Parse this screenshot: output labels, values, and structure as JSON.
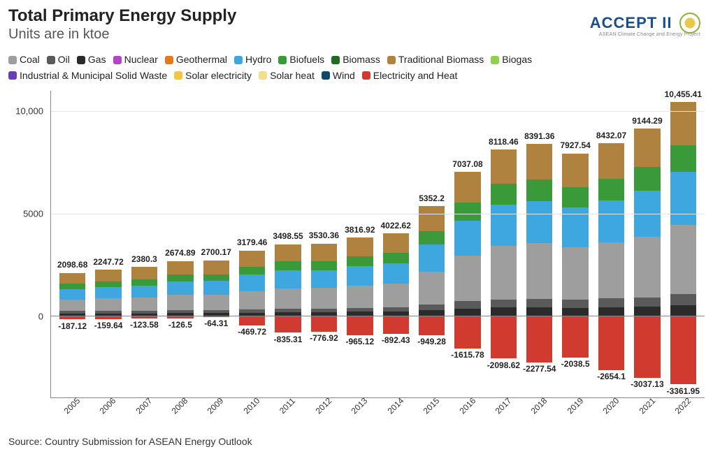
{
  "title": "Total Primary Energy Supply",
  "subtitle": "Units are in ktoe",
  "source": "Source: Country Submission for ASEAN Energy Outlook",
  "logo": {
    "main": "ACCEPT II",
    "sub": "ASEAN Climate Change and Energy Project"
  },
  "legend_order": [
    "Coal",
    "Oil",
    "Gas",
    "Nuclear",
    "Geothermal",
    "Hydro",
    "Biofuels",
    "Biomass",
    "Traditional Biomass",
    "Biogas",
    "Industrial & Municipal Solid Waste",
    "Solar electricity",
    "Solar heat",
    "Wind",
    "Electricity and Heat"
  ],
  "colors": {
    "Coal": "#9e9e9e",
    "Oil": "#5a5a5a",
    "Gas": "#2b2b2b",
    "Nuclear": "#b542c7",
    "Geothermal": "#e07b1f",
    "Hydro": "#3fa7e0",
    "Biofuels": "#3a9a3a",
    "Biomass": "#1f6b1f",
    "Traditional Biomass": "#b0823f",
    "Biogas": "#8fd14f",
    "Industrial & Municipal Solid Waste": "#6a3fb5",
    "Solar electricity": "#f2c744",
    "Solar heat": "#f0e08a",
    "Wind": "#0e4a66",
    "Electricity and Heat": "#d13a2f"
  },
  "chart": {
    "ymin": -4000,
    "ymax": 11000,
    "yticks": [
      0,
      5000,
      10000
    ],
    "ytick_labels": [
      "0",
      "5000",
      "10,000"
    ],
    "categories": [
      "2005",
      "2006",
      "2007",
      "2008",
      "2009",
      "2010",
      "2011",
      "2012",
      "2013",
      "2014",
      "2015",
      "2016",
      "2017",
      "2018",
      "2019",
      "2020",
      "2021",
      "2022"
    ],
    "top_labels": [
      "2098.68",
      "2247.72",
      "2380.3",
      "2674.89",
      "2700.17",
      "3179.46",
      "3498.55",
      "3530.36",
      "3816.92",
      "4022.62",
      "5352.2",
      "7037.08",
      "8118.46",
      "8391.36",
      "7927.54",
      "8432.07",
      "9144.29",
      "10,455.41"
    ],
    "bot_labels": [
      "-187.12",
      "-159.64",
      "-123.58",
      "-126.5",
      "-64.31",
      "-469.72",
      "-835.31",
      "-776.92",
      "-965.12",
      "-892.43",
      "-949.28",
      "-1615.78",
      "-2098.62",
      "-2277.54",
      "-2038.5",
      "-2654.1",
      "-3037.13",
      "-3361.95"
    ],
    "pos_totals": [
      2098.68,
      2247.72,
      2380.3,
      2674.89,
      2700.17,
      3179.46,
      3498.55,
      3530.36,
      3816.92,
      4022.62,
      5352.2,
      7037.08,
      8118.46,
      8391.36,
      7927.54,
      8432.07,
      9144.29,
      10455.41
    ],
    "neg_totals": [
      -187.12,
      -159.64,
      -123.58,
      -126.5,
      -64.31,
      -469.72,
      -835.31,
      -776.92,
      -965.12,
      -892.43,
      -949.28,
      -1615.78,
      -2098.62,
      -2277.54,
      -2038.5,
      -2654.1,
      -3037.13,
      -3361.95
    ],
    "pos_stack_order": [
      "Gas",
      "Oil",
      "Coal",
      "Hydro",
      "Biofuels",
      "Traditional Biomass"
    ],
    "neg_stack_order": [
      "Electricity and Heat"
    ],
    "series": {
      "Gas": [
        100,
        110,
        115,
        130,
        130,
        150,
        170,
        175,
        190,
        200,
        270,
        350,
        400,
        410,
        390,
        420,
        450,
        520
      ],
      "Oil": [
        120,
        125,
        130,
        140,
        140,
        160,
        170,
        175,
        190,
        200,
        270,
        350,
        400,
        410,
        390,
        420,
        450,
        520
      ],
      "Coal": [
        560,
        600,
        640,
        740,
        750,
        900,
        1000,
        1000,
        1090,
        1170,
        1600,
        2220,
        2630,
        2720,
        2560,
        2730,
        2960,
        3410
      ],
      "Hydro": [
        520,
        560,
        590,
        660,
        670,
        790,
        870,
        880,
        950,
        1000,
        1330,
        1740,
        2000,
        2070,
        1960,
        2080,
        2260,
        2570
      ],
      "Biofuels": [
        260,
        280,
        300,
        340,
        340,
        400,
        440,
        440,
        480,
        500,
        670,
        880,
        1010,
        1050,
        990,
        1050,
        1150,
        1310
      ],
      "Traditional Biomass": [
        538.68,
        572.72,
        605.3,
        664.89,
        670.17,
        779.46,
        848.55,
        860.36,
        916.92,
        952.62,
        1212.2,
        1497.08,
        1678.46,
        1731.36,
        1637.54,
        1732.07,
        1874.29,
        2125.41
      ],
      "Electricity and Heat": [
        -187.12,
        -159.64,
        -123.58,
        -126.5,
        -64.31,
        -469.72,
        -835.31,
        -776.92,
        -965.12,
        -892.43,
        -949.28,
        -1615.78,
        -2098.62,
        -2277.54,
        -2038.5,
        -2654.1,
        -3037.13,
        -3361.95
      ]
    }
  }
}
